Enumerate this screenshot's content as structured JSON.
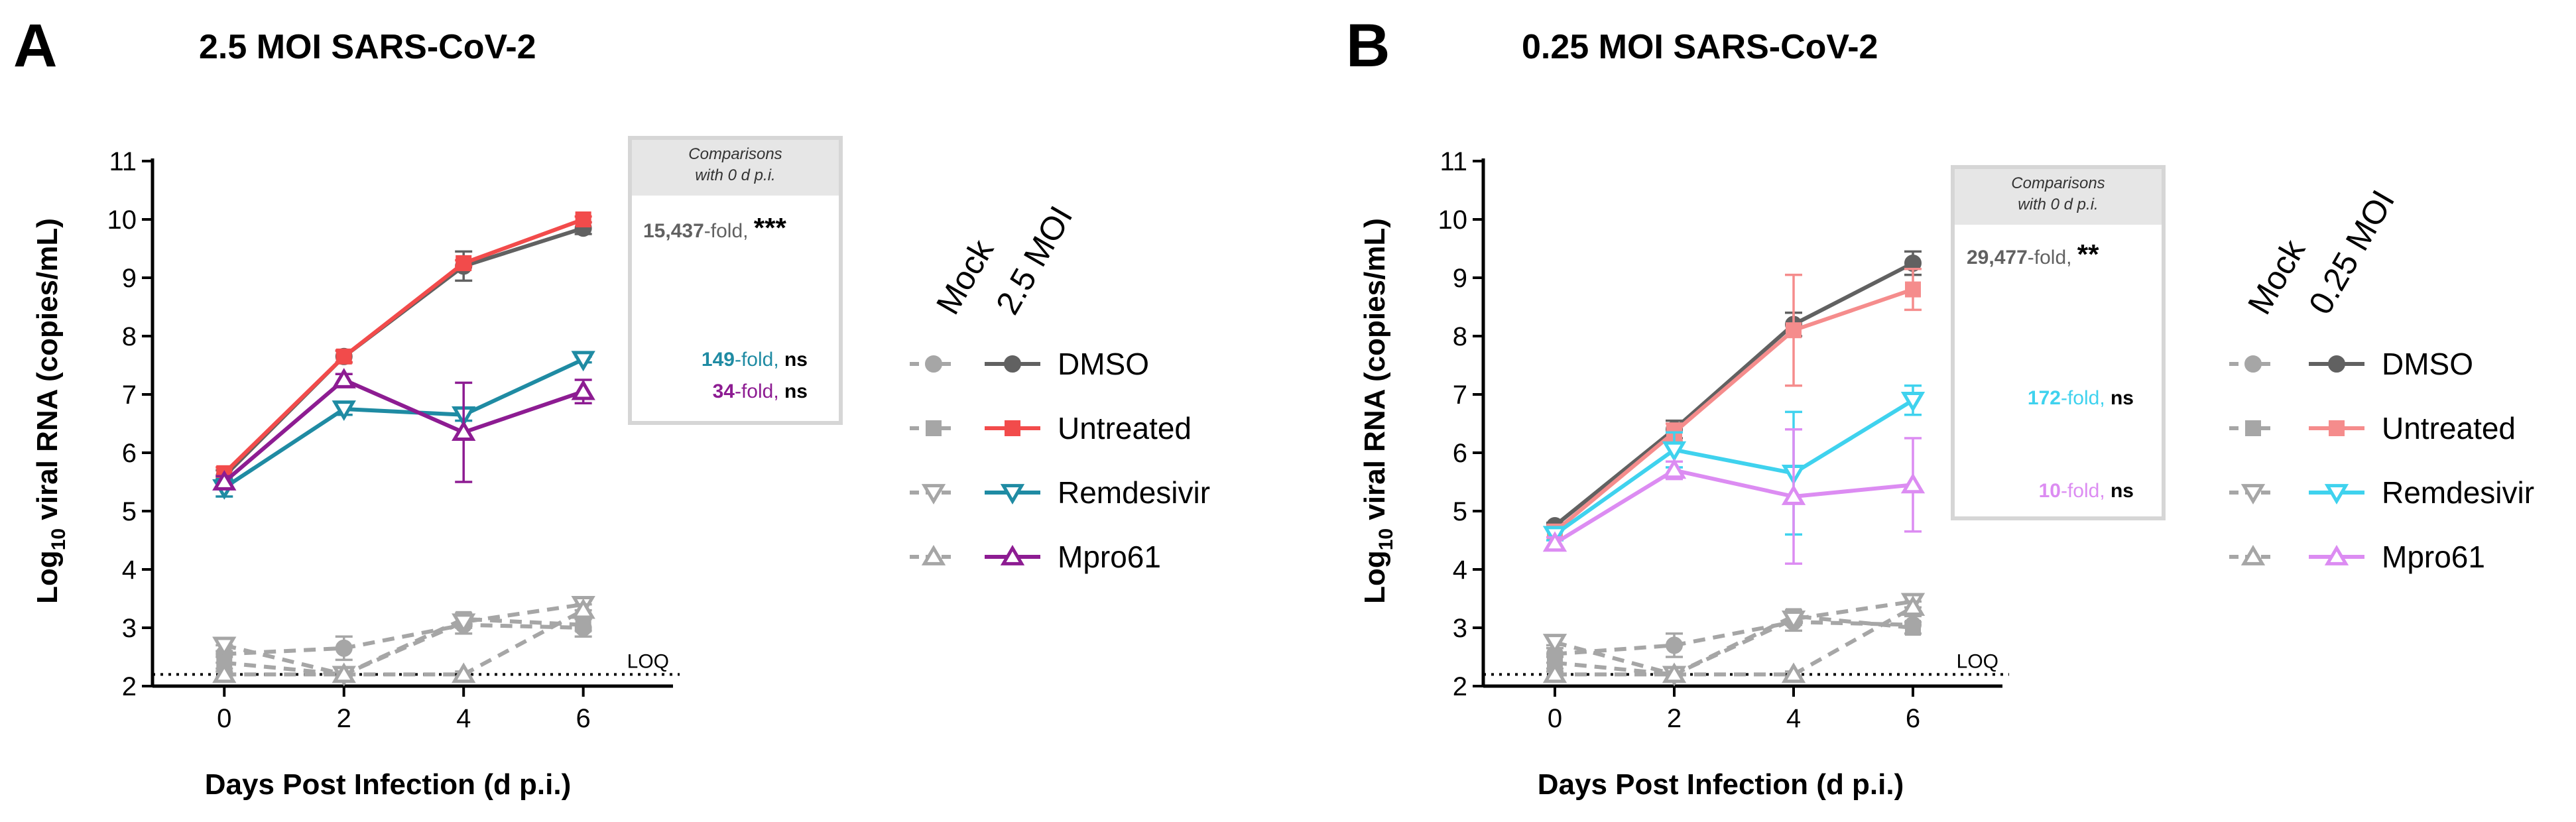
{
  "colors": {
    "dmso": "#616161",
    "untreated_a": "#f24b4b",
    "untreated_b": "#f58c8c",
    "remdesivir_a": "#1f8ba3",
    "remdesivir_b": "#3fd2ee",
    "mpro61_a": "#8d1c92",
    "mpro61_b": "#dc8cf2",
    "mock": "#a6a6a6"
  },
  "panels": [
    {
      "letter": "A",
      "title": "2.5 MOI SARS-CoV-2",
      "comparisons_header_line1": "Comparisons",
      "comparisons_header_line2": "with 0 d p.i.",
      "annotations": [
        {
          "number": "15,437",
          "suffix": "-fold, ",
          "sig": "***",
          "color_key": "dmso"
        },
        {
          "number": "149",
          "suffix": "-fold, ",
          "sig": "ns",
          "color_key": "remdesivir_a"
        },
        {
          "number": "34",
          "suffix": "-fold, ",
          "sig": "ns",
          "color_key": "mpro61_a"
        }
      ],
      "legend_col_mock": "Mock",
      "legend_col_moi": "2.5 MOI",
      "legend_items": [
        "DMSO",
        "Untreated",
        "Remdesivir",
        "Mpro61"
      ],
      "loq_label": "LOQ"
    },
    {
      "letter": "B",
      "title": "0.25 MOI SARS-CoV-2",
      "comparisons_header_line1": "Comparisons",
      "comparisons_header_line2": "with 0 d p.i.",
      "annotations": [
        {
          "number": "29,477",
          "suffix": "-fold, ",
          "sig": "**",
          "color_key": "dmso"
        },
        {
          "number": "172",
          "suffix": "-fold, ",
          "sig": "ns",
          "color_key": "remdesivir_b"
        },
        {
          "number": "10",
          "suffix": "-fold, ",
          "sig": "ns",
          "color_key": "mpro61_b"
        }
      ],
      "legend_col_mock": "Mock",
      "legend_col_moi": "0.25 MOI",
      "legend_items": [
        "DMSO",
        "Untreated",
        "Remdesivir",
        "Mpro61"
      ],
      "loq_label": "LOQ"
    }
  ],
  "chart_data": [
    {
      "type": "line",
      "title": "2.5 MOI SARS-CoV-2",
      "xlabel": "Days Post Infection (d p.i.)",
      "ylabel": "Log10 viral RNA (copies/mL)",
      "x": [
        0,
        2,
        4,
        6
      ],
      "xticks": [
        "0",
        "2",
        "4",
        "6"
      ],
      "ylim": [
        2,
        11
      ],
      "yticks": [
        "2",
        "3",
        "4",
        "5",
        "6",
        "7",
        "8",
        "9",
        "10",
        "11"
      ],
      "loq": 2.2,
      "series": [
        {
          "name": "DMSO",
          "group": "2.5 MOI",
          "marker": "circle",
          "color_key": "dmso",
          "values": [
            5.6,
            7.65,
            9.2,
            9.85
          ],
          "errors": [
            0.1,
            0.1,
            0.25,
            0.1
          ]
        },
        {
          "name": "Untreated",
          "group": "2.5 MOI",
          "marker": "square",
          "color_key": "untreated_a",
          "values": [
            5.65,
            7.65,
            9.25,
            10.0
          ],
          "errors": [
            0.1,
            0.1,
            0.05,
            0.05
          ]
        },
        {
          "name": "Remdesivir",
          "group": "2.5 MOI",
          "marker": "triangle-down",
          "color_key": "remdesivir_a",
          "values": [
            5.4,
            6.75,
            6.65,
            7.6
          ],
          "errors": [
            0.15,
            0.1,
            0.1,
            0.05
          ]
        },
        {
          "name": "Mpro61",
          "group": "2.5 MOI",
          "marker": "triangle-up",
          "color_key": "mpro61_a",
          "values": [
            5.5,
            7.25,
            6.35,
            7.05
          ],
          "errors": [
            0.1,
            0.1,
            0.85,
            0.2
          ]
        },
        {
          "name": "DMSO",
          "group": "Mock",
          "marker": "circle",
          "color_key": "mock",
          "values": [
            2.55,
            2.65,
            3.05,
            3.0
          ],
          "errors": [
            0.15,
            0.2,
            0.15,
            0.15
          ]
        },
        {
          "name": "Untreated",
          "group": "Mock",
          "marker": "square",
          "color_key": "mock",
          "values": [
            2.4,
            2.2,
            3.15,
            3.05
          ],
          "errors": [
            0.1,
            0.05,
            0.1,
            0.1
          ]
        },
        {
          "name": "Remdesivir",
          "group": "Mock",
          "marker": "triangle-down",
          "color_key": "mock",
          "values": [
            2.7,
            2.2,
            3.1,
            3.4
          ],
          "errors": [
            0.1,
            0.05,
            0.1,
            0.1
          ]
        },
        {
          "name": "Mpro61",
          "group": "Mock",
          "marker": "triangle-up",
          "color_key": "mock",
          "values": [
            2.2,
            2.2,
            2.2,
            3.3
          ],
          "errors": [
            0.05,
            0.05,
            0.05,
            0.1
          ]
        }
      ]
    },
    {
      "type": "line",
      "title": "0.25 MOI SARS-CoV-2",
      "xlabel": "Days Post Infection (d p.i.)",
      "ylabel": "Log10 viral RNA (copies/mL)",
      "x": [
        0,
        2,
        4,
        6
      ],
      "xticks": [
        "0",
        "2",
        "4",
        "6"
      ],
      "ylim": [
        2,
        11
      ],
      "yticks": [
        "2",
        "3",
        "4",
        "5",
        "6",
        "7",
        "8",
        "9",
        "10",
        "11"
      ],
      "loq": 2.2,
      "series": [
        {
          "name": "DMSO",
          "group": "0.25 MOI",
          "marker": "circle",
          "color_key": "dmso",
          "values": [
            4.75,
            6.4,
            8.2,
            9.25
          ],
          "errors": [
            0.05,
            0.15,
            0.2,
            0.2
          ]
        },
        {
          "name": "Untreated",
          "group": "0.25 MOI",
          "marker": "square",
          "color_key": "untreated_b",
          "values": [
            4.65,
            6.35,
            8.1,
            8.8
          ],
          "errors": [
            0.1,
            0.15,
            0.95,
            0.35
          ]
        },
        {
          "name": "Remdesivir",
          "group": "0.25 MOI",
          "marker": "triangle-down",
          "color_key": "remdesivir_b",
          "values": [
            4.6,
            6.05,
            5.65,
            6.9
          ],
          "errors": [
            0.1,
            0.3,
            1.05,
            0.25
          ]
        },
        {
          "name": "Mpro61",
          "group": "0.25 MOI",
          "marker": "triangle-up",
          "color_key": "mpro61_b",
          "values": [
            4.45,
            5.7,
            5.25,
            5.45
          ],
          "errors": [
            0.1,
            0.15,
            1.15,
            0.8
          ]
        },
        {
          "name": "DMSO",
          "group": "Mock",
          "marker": "circle",
          "color_key": "mock",
          "values": [
            2.55,
            2.7,
            3.1,
            3.05
          ],
          "errors": [
            0.15,
            0.2,
            0.15,
            0.15
          ]
        },
        {
          "name": "Untreated",
          "group": "Mock",
          "marker": "square",
          "color_key": "mock",
          "values": [
            2.4,
            2.2,
            3.2,
            3.0
          ],
          "errors": [
            0.1,
            0.05,
            0.1,
            0.1
          ]
        },
        {
          "name": "Remdesivir",
          "group": "Mock",
          "marker": "triangle-down",
          "color_key": "mock",
          "values": [
            2.75,
            2.2,
            3.15,
            3.45
          ],
          "errors": [
            0.1,
            0.05,
            0.1,
            0.1
          ]
        },
        {
          "name": "Mpro61",
          "group": "Mock",
          "marker": "triangle-up",
          "color_key": "mock",
          "values": [
            2.2,
            2.2,
            2.2,
            3.35
          ],
          "errors": [
            0.05,
            0.05,
            0.05,
            0.1
          ]
        }
      ]
    }
  ]
}
